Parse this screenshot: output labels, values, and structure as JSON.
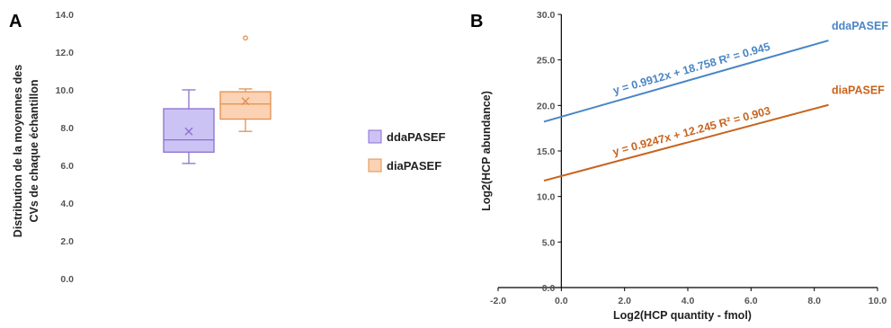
{
  "panels": {
    "a": "A",
    "b": "B"
  },
  "chart_data": [
    {
      "type": "box",
      "ylabel_line1": "Distribution de la moyennes des",
      "ylabel_line2": "CVs de chaque échantillon",
      "ylim": [
        0,
        14
      ],
      "yticks": [
        "0.0",
        "2.0",
        "4.0",
        "6.0",
        "8.0",
        "10.0",
        "12.0",
        "14.0"
      ],
      "yticks_values": [
        0,
        2,
        4,
        6,
        8,
        10,
        12,
        14
      ],
      "legend_position": "right",
      "series": [
        {
          "name": "ddaPASEF",
          "min": 6.1,
          "q1": 6.7,
          "median": 7.35,
          "q3": 9.0,
          "max": 10.0,
          "mean": 7.8,
          "outliers": [],
          "fill": "#ccc3f5",
          "stroke": "#8a6fd1"
        },
        {
          "name": "diaPASEF",
          "min": 7.8,
          "q1": 8.45,
          "median": 9.25,
          "q3": 9.9,
          "max": 10.05,
          "mean": 9.4,
          "outliers": [
            12.75
          ],
          "fill": "#fbd2b3",
          "stroke": "#e2904f"
        }
      ]
    },
    {
      "type": "line",
      "xlabel": "Log2(HCP quantity - fmol)",
      "ylabel": "Log2(HCP abundance)",
      "xlim": [
        -2,
        10
      ],
      "ylim": [
        0,
        30
      ],
      "xticks": [
        "-2.0",
        "0.0",
        "2.0",
        "4.0",
        "6.0",
        "8.0",
        "10.0"
      ],
      "xticks_values": [
        -2,
        0,
        2,
        4,
        6,
        8,
        10
      ],
      "yticks": [
        "0.0",
        "5.0",
        "10.0",
        "15.0",
        "20.0",
        "25.0",
        "30.0"
      ],
      "yticks_values": [
        0,
        5,
        10,
        15,
        20,
        25,
        30
      ],
      "series": [
        {
          "name": "ddaPASEF",
          "slope": 0.9912,
          "intercept": 18.758,
          "x": [
            -0.55,
            8.45
          ],
          "equation": "y = 0.9912x + 18.758 R² = 0.945",
          "color": "#4a86c6"
        },
        {
          "name": "diaPASEF",
          "slope": 0.9247,
          "intercept": 12.245,
          "x": [
            -0.55,
            8.45
          ],
          "equation": "y = 0.9247x + 12.245 R² = 0.903",
          "color": "#c8641e"
        }
      ]
    }
  ]
}
